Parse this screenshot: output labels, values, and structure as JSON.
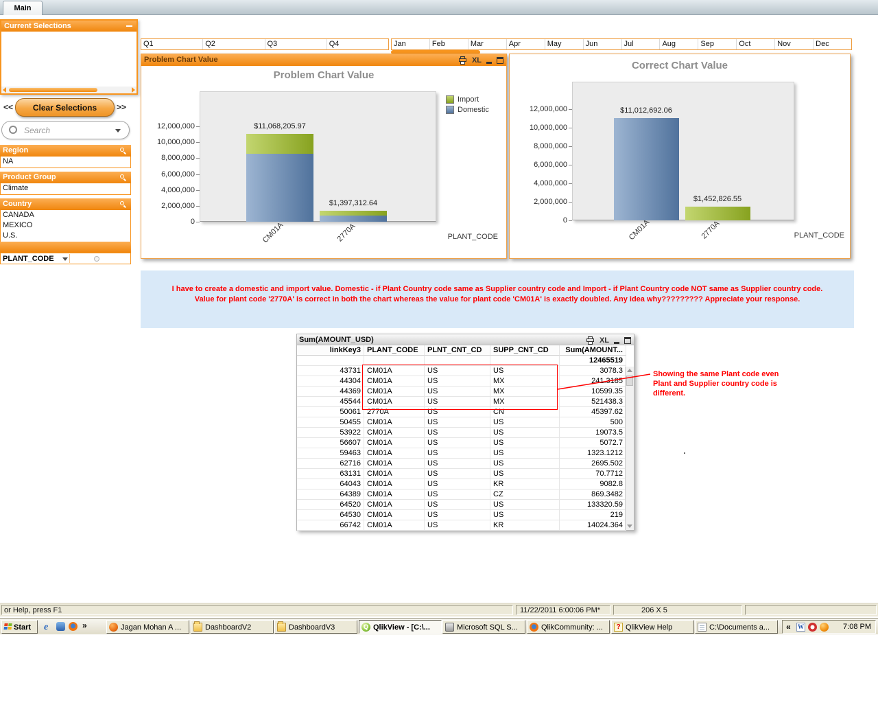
{
  "colors": {
    "accent_orange": "#f7941e",
    "bar_blue": "#6d92bd",
    "bar_green": "#9fba3a",
    "message_red": "#ff0000",
    "message_bg": "#d9e9f8"
  },
  "tab": {
    "label": "Main"
  },
  "sidebar": {
    "current_selections": {
      "title": "Current Selections",
      "minimize_icon": "minimize-icon"
    },
    "nav": {
      "left": "<<",
      "clear": "Clear Selections",
      "right": ">>"
    },
    "search": {
      "placeholder": "Search",
      "icons": [
        "search-icon",
        "chevron-down-icon"
      ]
    },
    "listboxes": [
      {
        "title": "Region",
        "values": [
          "NA"
        ],
        "icon": "search-icon"
      },
      {
        "title": "Product Group",
        "values": [
          "Climate"
        ],
        "icon": "search-icon"
      },
      {
        "title": "Country",
        "values": [
          "CANADA",
          "MEXICO",
          "U.S."
        ],
        "icon": "search-icon"
      }
    ],
    "field_selector": {
      "label": "PLANT_CODE",
      "icons": [
        "chevron-down-icon",
        "radio-icon"
      ]
    }
  },
  "strips": {
    "quarters": [
      "Q1",
      "Q2",
      "Q3",
      "Q4"
    ],
    "months": [
      "Jan",
      "Feb",
      "Mar",
      "Apr",
      "May",
      "Jun",
      "Jul",
      "Aug",
      "Sep",
      "Oct",
      "Nov",
      "Dec"
    ]
  },
  "chart_data": [
    {
      "type": "bar",
      "stacked": true,
      "window_title": "Problem Chart Value",
      "title": "Problem Chart Value",
      "xlabel": "PLANT_CODE",
      "ylim": [
        0,
        12000000
      ],
      "yticks": [
        0,
        2000000,
        4000000,
        6000000,
        8000000,
        10000000,
        12000000
      ],
      "ytick_labels": [
        "0",
        "2,000,000",
        "4,000,000",
        "6,000,000",
        "8,000,000",
        "10,000,000",
        "12,000,000"
      ],
      "legend_position": "right-top",
      "legend": [
        {
          "label": "Import",
          "color": "#9fba3a"
        },
        {
          "label": "Domestic",
          "color": "#6d92bd"
        }
      ],
      "bars": [
        {
          "category": "CM01A",
          "label": "$11,068,205.97",
          "total": 11068205.97,
          "segments": [
            {
              "name": "Domestic",
              "color": "#6d92bd",
              "value": 8570000
            },
            {
              "name": "Import",
              "color": "#9fba3a",
              "value": 2498206
            }
          ]
        },
        {
          "category": "2770A",
          "label": "$1,397,312.64",
          "total": 1397312.64,
          "segments": [
            {
              "name": "Domestic",
              "color": "#6d92bd",
              "value": 790000
            },
            {
              "name": "Import",
              "color": "#9fba3a",
              "value": 607313
            }
          ]
        }
      ],
      "caption_icons": [
        "printer-icon",
        "excel-icon",
        "minimize-icon",
        "maximize-icon"
      ]
    },
    {
      "type": "bar",
      "stacked": false,
      "window_title": null,
      "title": "Correct Chart Value",
      "xlabel": "PLANT_CODE",
      "ylim": [
        0,
        12000000
      ],
      "yticks": [
        0,
        2000000,
        4000000,
        6000000,
        8000000,
        10000000,
        12000000
      ],
      "ytick_labels": [
        "0",
        "2,000,000",
        "4,000,000",
        "6,000,000",
        "8,000,000",
        "10,000,000",
        "12,000,000"
      ],
      "legend": null,
      "bars": [
        {
          "category": "CM01A",
          "label": "$11,012,692.06",
          "total": 11012692.06,
          "segments": [
            {
              "name": "value",
              "color": "#6d92bd",
              "value": 11012692.06
            }
          ]
        },
        {
          "category": "2770A",
          "label": "$1,452,826.55",
          "total": 1452826.55,
          "segments": [
            {
              "name": "value",
              "color": "#9fba3a",
              "value": 1452826.55
            }
          ]
        }
      ],
      "caption_icons": []
    }
  ],
  "message": {
    "line1": "I have to create a domestic and import value. Domestic  - if Plant Country code same as Supplier country code and Import - if Plant Country code NOT same as Supplier country code.",
    "line2": "Value for plant code '2770A' is correct in both the chart whereas the value for plant code 'CM01A' is exactly doubled. Any idea why????????? Appreciate your response."
  },
  "table": {
    "caption": "Sum(AMOUNT_USD)",
    "caption_icons": [
      "printer-icon",
      "excel-icon",
      "minimize-icon",
      "maximize-icon"
    ],
    "columns": [
      "linkKey3",
      "PLANT_CODE",
      "PLNT_CNT_CD",
      "SUPP_CNT_CD",
      "Sum(AMOUNT..."
    ],
    "total_row": {
      "sum": "12465519"
    },
    "rows": [
      [
        "43731",
        "CM01A",
        "US",
        "US",
        "3078.3"
      ],
      [
        "44304",
        "CM01A",
        "US",
        "MX",
        "241.3185"
      ],
      [
        "44369",
        "CM01A",
        "US",
        "MX",
        "10599.35"
      ],
      [
        "45544",
        "CM01A",
        "US",
        "MX",
        "521438.3"
      ],
      [
        "50061",
        "2770A",
        "US",
        "CN",
        "45397.62"
      ],
      [
        "50455",
        "CM01A",
        "US",
        "US",
        "500"
      ],
      [
        "53922",
        "CM01A",
        "US",
        "US",
        "19073.5"
      ],
      [
        "56607",
        "CM01A",
        "US",
        "US",
        "5072.7"
      ],
      [
        "59463",
        "CM01A",
        "US",
        "US",
        "1323.1212"
      ],
      [
        "62716",
        "CM01A",
        "US",
        "US",
        "2695.502"
      ],
      [
        "63131",
        "CM01A",
        "US",
        "US",
        "70.7712"
      ],
      [
        "64043",
        "CM01A",
        "US",
        "KR",
        "9082.8"
      ],
      [
        "64389",
        "CM01A",
        "US",
        "CZ",
        "869.3482"
      ],
      [
        "64520",
        "CM01A",
        "US",
        "US",
        "133320.59"
      ],
      [
        "64530",
        "CM01A",
        "US",
        "US",
        "219"
      ],
      [
        "66742",
        "CM01A",
        "US",
        "KR",
        "14024.364"
      ]
    ]
  },
  "annotation": {
    "text": "Showing the same Plant code even Plant and Supplier country code is different."
  },
  "statusbar": {
    "help_text": "or Help, press F1",
    "datetime": "11/22/2011 6:00:06 PM*",
    "dimensions": "206 X 5"
  },
  "taskbar": {
    "start_label": "Start",
    "quick_launch_icons": [
      "internet-explorer-icon",
      "media-player-icon",
      "firefox-icon"
    ],
    "overflow_chevron": "»",
    "buttons": [
      {
        "label": "Jagan Mohan A ...",
        "icon": "globe-icon",
        "active": false
      },
      {
        "label": "DashboardV2",
        "icon": "folder-icon",
        "active": false
      },
      {
        "label": "DashboardV3",
        "icon": "folder-icon",
        "active": false
      },
      {
        "label": "QlikView - [C:\\...",
        "icon": "qlikview-icon",
        "active": true
      },
      {
        "label": "Microsoft SQL S...",
        "icon": "sql-server-icon",
        "active": false
      },
      {
        "label": "QlikCommunity: ...",
        "icon": "firefox-icon",
        "active": false
      },
      {
        "label": "QlikView Help",
        "icon": "help-icon",
        "active": false
      },
      {
        "label": "C:\\Documents a...",
        "icon": "text-file-icon",
        "active": false
      }
    ],
    "tray": {
      "chevron": "«",
      "icons": [
        "word-icon",
        "clock-icon",
        "qlik-ball-icon"
      ],
      "time": "7:08 PM"
    }
  }
}
